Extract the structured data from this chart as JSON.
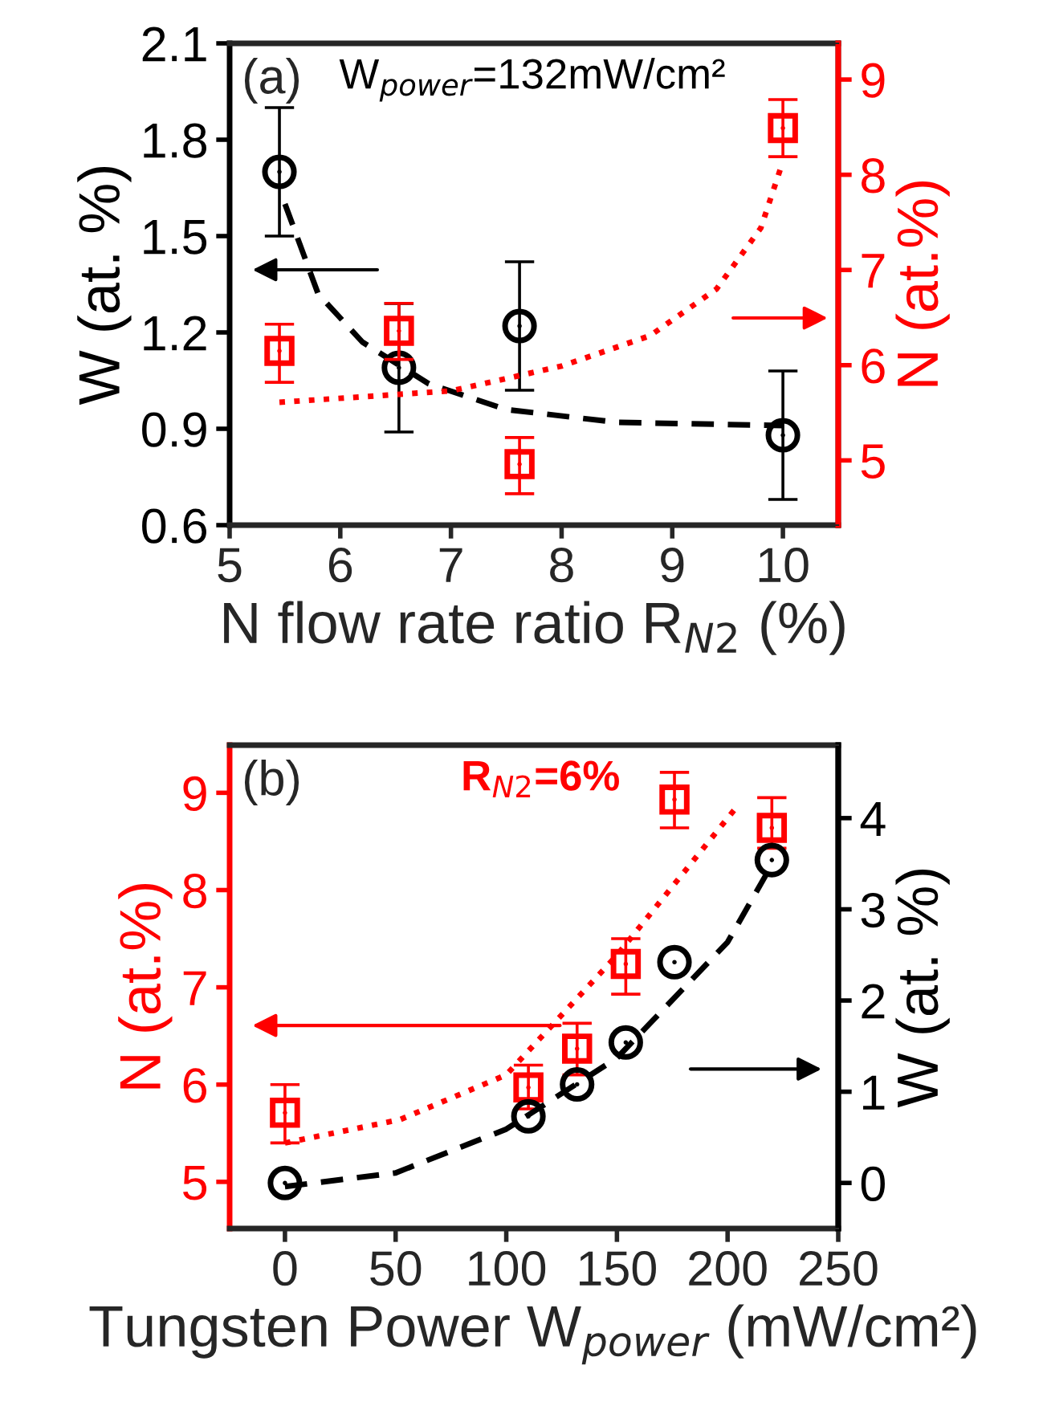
{
  "chart_data": [
    {
      "type": "scatter",
      "title": "(a)",
      "xlabel": "N flow rate ratio R$_{N2}$ (%)",
      "ylabel": "W (at. %)",
      "y2label": "N (at.%)",
      "annotations": [
        "W$_{power}$=132mW/cm²"
      ],
      "xlim": [
        5,
        10.5
      ],
      "xticks": [
        5,
        6,
        7,
        8,
        9,
        10
      ],
      "ylim": [
        0.6,
        2.1
      ],
      "yticks": [
        0.6,
        0.9,
        1.2,
        1.5,
        1.8,
        2.1
      ],
      "y2lim": [
        4.32,
        9.38
      ],
      "y2ticks": [
        5,
        6,
        7,
        8,
        9
      ],
      "grid": false,
      "series": [
        {
          "color": "#000000",
          "marker": "circle",
          "x": [
            5.45,
            6.53,
            7.62,
            10
          ],
          "values": [
            1.7,
            1.09,
            1.22,
            0.88
          ],
          "errors": [
            [
              1.5,
              1.9
            ],
            [
              0.89,
              1.29
            ],
            [
              1.02,
              1.42
            ],
            [
              0.68,
              1.08
            ]
          ]
        },
        {
          "color": "#ff0000",
          "marker": "square",
          "axis": "y2",
          "x": [
            5.45,
            6.53,
            7.62,
            10
          ],
          "values": [
            6.15,
            6.36,
            4.96,
            8.49
          ],
          "errors": [
            [
              5.82,
              6.43
            ],
            [
              6.06,
              6.65
            ],
            [
              4.65,
              5.24
            ],
            [
              8.19,
              8.79
            ]
          ]
        },
        {
          "type": "line",
          "color": "#000000",
          "line_style": "dashed",
          "marker": "none",
          "x": [
            5.5,
            5.8,
            6.2,
            6.8,
            7.5,
            8.5,
            10
          ],
          "values": [
            1.6,
            1.32,
            1.17,
            1.04,
            0.96,
            0.92,
            0.91
          ]
        },
        {
          "type": "line",
          "color": "#ff0000",
          "line_style": "dotted",
          "marker": "none",
          "axis": "y2",
          "x": [
            5.45,
            7,
            8,
            8.8,
            9.4,
            9.8,
            10
          ],
          "values": [
            5.61,
            5.73,
            5.99,
            6.31,
            6.8,
            7.44,
            8.14
          ]
        }
      ]
    },
    {
      "type": "scatter",
      "title": "(b)",
      "xlabel": "Tungsten Power W$_{power}$ (mW/cm²)",
      "ylabel": "N (at.%)",
      "y2label": "W (at. %)",
      "annotations": [
        "R$_{N2}$=6%"
      ],
      "xlim": [
        -25,
        250
      ],
      "xticks": [
        0,
        50,
        100,
        150,
        200,
        250
      ],
      "ylim": [
        4.52,
        9.49
      ],
      "yticks": [
        5,
        6,
        7,
        8,
        9
      ],
      "y2lim": [
        -0.5,
        4.8
      ],
      "y2ticks": [
        0,
        1,
        2,
        3,
        4
      ],
      "grid": false,
      "series": [
        {
          "color": "#ff0000",
          "marker": "square",
          "x": [
            0,
            110,
            132,
            154,
            176,
            220
          ],
          "values": [
            5.71,
            5.97,
            6.37,
            7.24,
            8.93,
            8.64
          ],
          "errors": [
            [
              5.4,
              6.0
            ],
            [
              5.75,
              6.2
            ],
            [
              6.1,
              6.63
            ],
            [
              6.93,
              7.5
            ],
            [
              8.64,
              9.21
            ],
            [
              8.43,
              8.95
            ]
          ]
        },
        {
          "color": "#000000",
          "marker": "circle",
          "axis": "y2",
          "x": [
            0,
            110,
            132,
            154,
            176,
            220
          ],
          "values": [
            0,
            0.73,
            1.08,
            1.54,
            2.42,
            3.54
          ]
        },
        {
          "type": "line",
          "color": "#ff0000",
          "line_style": "dotted",
          "marker": "none",
          "x": [
            0,
            52,
            100,
            150,
            205
          ],
          "values": [
            5.4,
            5.64,
            6.1,
            7.33,
            8.88
          ]
        },
        {
          "type": "line",
          "color": "#000000",
          "line_style": "dashed",
          "marker": "none",
          "axis": "y2",
          "x": [
            0,
            50,
            100,
            150,
            200,
            220
          ],
          "values": [
            -0.04,
            0.11,
            0.59,
            1.37,
            2.64,
            3.49
          ]
        }
      ]
    }
  ]
}
